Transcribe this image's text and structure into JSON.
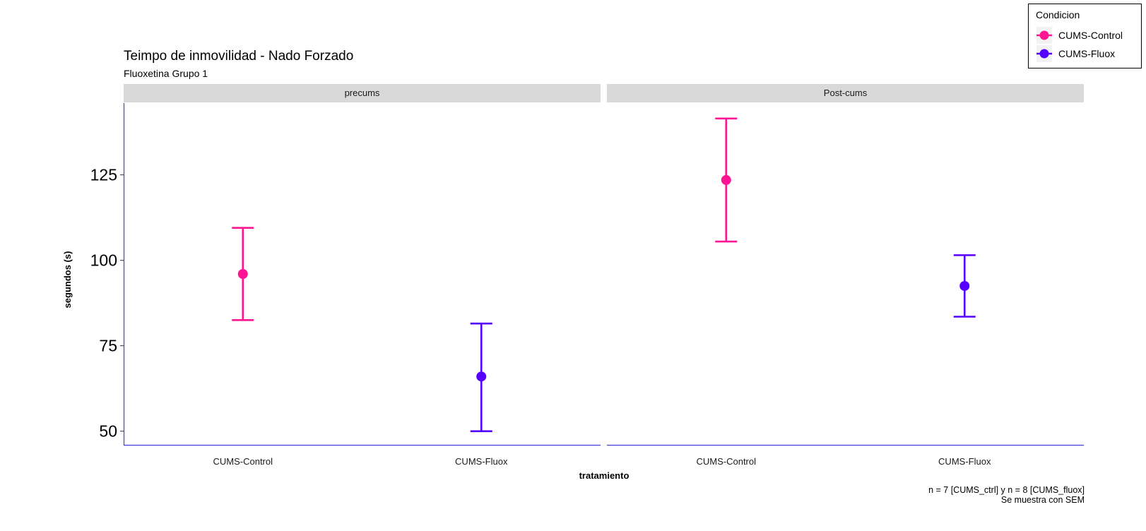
{
  "chart_data": {
    "type": "errorbar",
    "title": "Teimpo de inmovilidad - Nado Forzado",
    "subtitle": "Fluoxetina Grupo 1",
    "xlabel": "tratamiento",
    "ylabel": "segundos (s)",
    "caption_line1": "n = 7  [CUMS_ctrl] y n = 8 [CUMS_fluox]",
    "caption_line2": "Se muestra con SEM",
    "ylim": [
      46,
      146
    ],
    "yticks": [
      "50",
      "75",
      "100",
      "125"
    ],
    "categories": [
      "CUMS-Control",
      "CUMS-Fluox"
    ],
    "facets": [
      {
        "label": "precums",
        "points": [
          {
            "x": "CUMS-Control",
            "y": 96,
            "ymin": 82.5,
            "ymax": 109.5
          },
          {
            "x": "CUMS-Fluox",
            "y": 66,
            "ymin": 50,
            "ymax": 81.5
          }
        ]
      },
      {
        "label": "Post-cums",
        "points": [
          {
            "x": "CUMS-Control",
            "y": 123.5,
            "ymin": 105.5,
            "ymax": 141.5
          },
          {
            "x": "CUMS-Fluox",
            "y": 92.5,
            "ymin": 83.5,
            "ymax": 101.5
          }
        ]
      }
    ],
    "legend": {
      "title": "Condicion",
      "position": "top-right",
      "entries": [
        {
          "label": "CUMS-Control",
          "color": "#ff1493"
        },
        {
          "label": "CUMS-Fluox",
          "color": "#5500ff"
        }
      ]
    },
    "colors": {
      "axis": "#3f3fdd",
      "strip": "#d9d9d9"
    },
    "grid": false
  }
}
